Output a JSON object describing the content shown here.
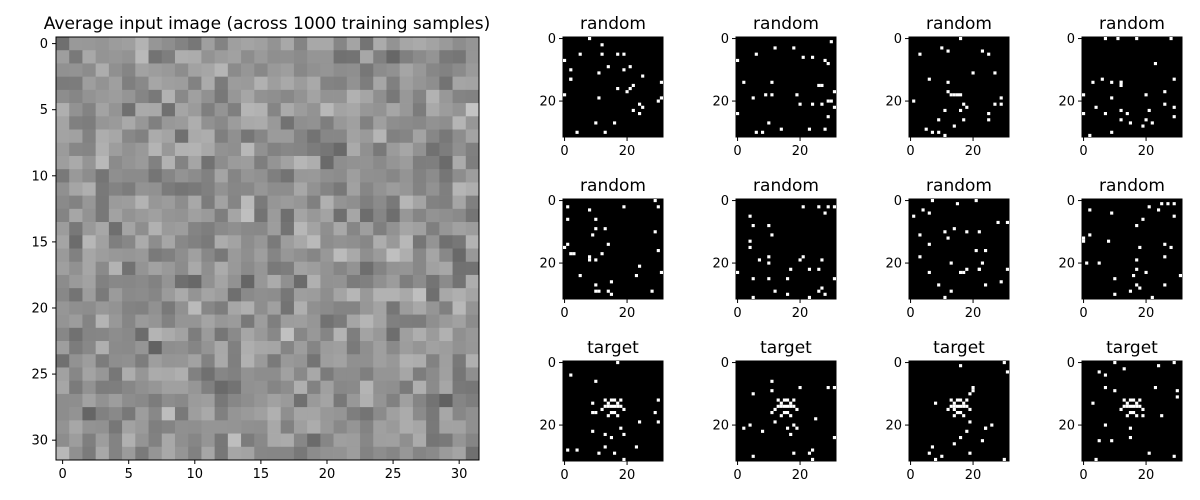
{
  "main_plot": {
    "title": "Average input image (across 1000 training samples)",
    "grid_size": 32,
    "x_ticks": [
      0,
      5,
      10,
      15,
      20,
      25,
      30
    ],
    "y_ticks": [
      0,
      5,
      10,
      15,
      20,
      25,
      30
    ],
    "colormap": "gray",
    "value_range": [
      0,
      1
    ]
  },
  "thumbnails": {
    "grid_size": 32,
    "x_ticks": [
      0,
      20
    ],
    "y_ticks": [
      0,
      20
    ],
    "background_color": "#000000",
    "pixel_color": "#ffffff",
    "items": [
      {
        "title": "random"
      },
      {
        "title": "random"
      },
      {
        "title": "random"
      },
      {
        "title": "random"
      },
      {
        "title": "random"
      },
      {
        "title": "random"
      },
      {
        "title": "random"
      },
      {
        "title": "random"
      },
      {
        "title": "target"
      },
      {
        "title": "target"
      },
      {
        "title": "target"
      },
      {
        "title": "target"
      }
    ]
  },
  "chart_data": [
    {
      "type": "heatmap",
      "title": "Average input image (across 1000 training samples)",
      "xlim": [
        -0.5,
        31.5
      ],
      "ylim": [
        31.5,
        -0.5
      ],
      "x_ticks": [
        0,
        5,
        10,
        15,
        20,
        25,
        30
      ],
      "y_ticks": [
        0,
        5,
        10,
        15,
        20,
        25,
        30
      ],
      "colormap": "gray"
    },
    {
      "type": "heatmap",
      "title": "random",
      "xlim": [
        -0.5,
        31.5
      ],
      "ylim": [
        31.5,
        -0.5
      ],
      "x_ticks": [
        0,
        20
      ],
      "y_ticks": [
        0,
        20
      ]
    },
    {
      "type": "heatmap",
      "title": "random",
      "xlim": [
        -0.5,
        31.5
      ],
      "ylim": [
        31.5,
        -0.5
      ],
      "x_ticks": [
        0,
        20
      ],
      "y_ticks": [
        0,
        20
      ]
    },
    {
      "type": "heatmap",
      "title": "random",
      "xlim": [
        -0.5,
        31.5
      ],
      "ylim": [
        31.5,
        -0.5
      ],
      "x_ticks": [
        0,
        20
      ],
      "y_ticks": [
        0,
        20
      ]
    },
    {
      "type": "heatmap",
      "title": "random",
      "xlim": [
        -0.5,
        31.5
      ],
      "ylim": [
        31.5,
        -0.5
      ],
      "x_ticks": [
        0,
        20
      ],
      "y_ticks": [
        0,
        20
      ]
    },
    {
      "type": "heatmap",
      "title": "random",
      "xlim": [
        -0.5,
        31.5
      ],
      "ylim": [
        31.5,
        -0.5
      ],
      "x_ticks": [
        0,
        20
      ],
      "y_ticks": [
        0,
        20
      ]
    },
    {
      "type": "heatmap",
      "title": "random",
      "xlim": [
        -0.5,
        31.5
      ],
      "ylim": [
        31.5,
        -0.5
      ],
      "x_ticks": [
        0,
        20
      ],
      "y_ticks": [
        0,
        20
      ]
    },
    {
      "type": "heatmap",
      "title": "random",
      "xlim": [
        -0.5,
        31.5
      ],
      "ylim": [
        31.5,
        -0.5
      ],
      "x_ticks": [
        0,
        20
      ],
      "y_ticks": [
        0,
        20
      ]
    },
    {
      "type": "heatmap",
      "title": "random",
      "xlim": [
        -0.5,
        31.5
      ],
      "ylim": [
        31.5,
        -0.5
      ],
      "x_ticks": [
        0,
        20
      ],
      "y_ticks": [
        0,
        20
      ]
    },
    {
      "type": "heatmap",
      "title": "target",
      "xlim": [
        -0.5,
        31.5
      ],
      "ylim": [
        31.5,
        -0.5
      ],
      "x_ticks": [
        0,
        20
      ],
      "y_ticks": [
        0,
        20
      ]
    },
    {
      "type": "heatmap",
      "title": "target",
      "xlim": [
        -0.5,
        31.5
      ],
      "ylim": [
        31.5,
        -0.5
      ],
      "x_ticks": [
        0,
        20
      ],
      "y_ticks": [
        0,
        20
      ]
    },
    {
      "type": "heatmap",
      "title": "target",
      "xlim": [
        -0.5,
        31.5
      ],
      "ylim": [
        31.5,
        -0.5
      ],
      "x_ticks": [
        0,
        20
      ],
      "y_ticks": [
        0,
        20
      ]
    },
    {
      "type": "heatmap",
      "title": "target",
      "xlim": [
        -0.5,
        31.5
      ],
      "ylim": [
        31.5,
        -0.5
      ],
      "x_ticks": [
        0,
        20
      ],
      "y_ticks": [
        0,
        20
      ]
    }
  ]
}
